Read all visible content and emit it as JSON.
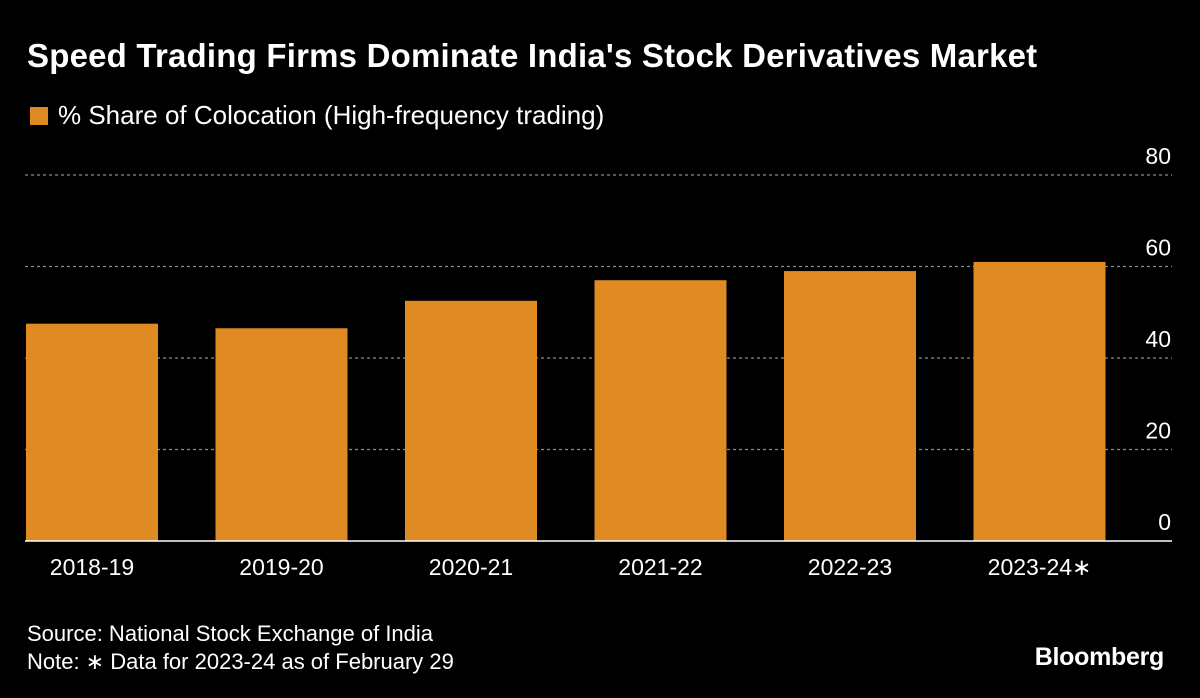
{
  "title": "Speed Trading Firms Dominate India's Stock Derivatives Market",
  "legend": {
    "label": "% Share of Colocation (High-frequency trading)"
  },
  "colors": {
    "background": "#000000",
    "bar": "#e08a24",
    "text": "#ffffff",
    "grid": "#8a8a8a"
  },
  "chart_data": {
    "type": "bar",
    "title": "Speed Trading Firms Dominate India's Stock Derivatives Market",
    "categories": [
      "2018-19",
      "2019-20",
      "2020-21",
      "2021-22",
      "2022-23",
      "2023-24∗"
    ],
    "series": [
      {
        "name": "% Share of Colocation (High-frequency trading)",
        "values": [
          47.5,
          46.5,
          52.5,
          57,
          59,
          61
        ]
      }
    ],
    "ylim": [
      0,
      80
    ],
    "yticks": [
      0,
      20,
      40,
      60,
      80
    ],
    "grid": true,
    "yaxis_position": "right",
    "legend_position": "top-left",
    "xlabel": "",
    "ylabel": ""
  },
  "footer": {
    "source": "Source: National Stock Exchange of India",
    "note": "Note: ∗ Data for 2023-24 as of February 29"
  },
  "brand": "Bloomberg"
}
